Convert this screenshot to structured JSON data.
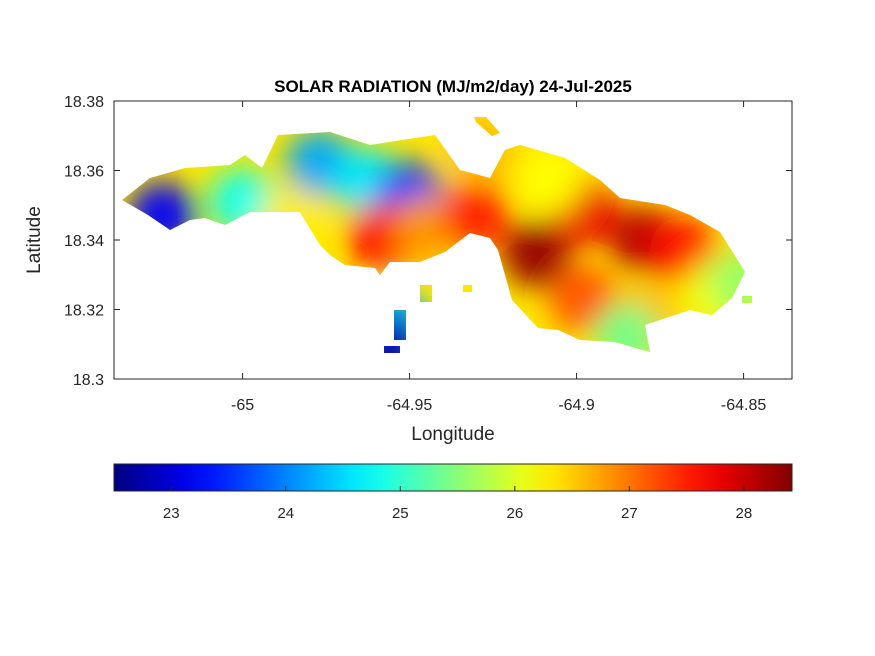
{
  "chart_data": {
    "type": "heatmap",
    "title": "SOLAR RADIATION (MJ/m2/day) 24-Jul-2025",
    "xlabel": "Longitude",
    "ylabel": "Latitude",
    "xlim": [
      -65.0385,
      -64.8355
    ],
    "ylim": [
      18.3,
      18.38
    ],
    "xticks": [
      -65,
      -64.95,
      -64.9,
      -64.85
    ],
    "xtick_labels": [
      "-65",
      "-64.95",
      "-64.9",
      "-64.85"
    ],
    "yticks": [
      18.3,
      18.32,
      18.34,
      18.36,
      18.38
    ],
    "ytick_labels": [
      "18.3",
      "18.32",
      "18.34",
      "18.36",
      "18.38"
    ],
    "colorbar": {
      "orientation": "horizontal",
      "colormap": "jet",
      "range": [
        22.5,
        28.42
      ],
      "ticks": [
        23,
        24,
        25,
        26,
        27,
        28
      ],
      "tick_labels": [
        "23",
        "24",
        "25",
        "26",
        "27",
        "28"
      ]
    },
    "hotspots": [
      {
        "lon": -65.024,
        "lat": 18.347,
        "value": 23.2
      },
      {
        "lon": -65.0,
        "lat": 18.351,
        "value": 24.8
      },
      {
        "lon": -64.977,
        "lat": 18.362,
        "value": 24.2
      },
      {
        "lon": -64.963,
        "lat": 18.357,
        "value": 24.6
      },
      {
        "lon": -64.95,
        "lat": 18.353,
        "value": 23.6
      },
      {
        "lon": -64.985,
        "lat": 18.345,
        "value": 26.3
      },
      {
        "lon": -64.958,
        "lat": 18.341,
        "value": 27.7
      },
      {
        "lon": -64.945,
        "lat": 18.343,
        "value": 26.8
      },
      {
        "lon": -64.93,
        "lat": 18.347,
        "value": 27.5
      },
      {
        "lon": -64.912,
        "lat": 18.336,
        "value": 28.3
      },
      {
        "lon": -64.898,
        "lat": 18.348,
        "value": 27.8
      },
      {
        "lon": -64.88,
        "lat": 18.34,
        "value": 28.1
      },
      {
        "lon": -64.868,
        "lat": 18.337,
        "value": 27.6
      },
      {
        "lon": -64.908,
        "lat": 18.357,
        "value": 26.2
      },
      {
        "lon": -64.898,
        "lat": 18.323,
        "value": 27.2
      },
      {
        "lon": -64.88,
        "lat": 18.318,
        "value": 26.6
      },
      {
        "lon": -64.858,
        "lat": 18.325,
        "value": 26.1
      },
      {
        "lon": -64.85,
        "lat": 18.328,
        "value": 25.6
      },
      {
        "lon": -64.928,
        "lat": 18.366,
        "value": 26.6
      },
      {
        "lon": -64.955,
        "lat": 18.317,
        "value": 24.3
      },
      {
        "lon": -64.956,
        "lat": 18.309,
        "value": 22.8
      },
      {
        "lon": -64.885,
        "lat": 18.312,
        "value": 25.4
      }
    ]
  }
}
